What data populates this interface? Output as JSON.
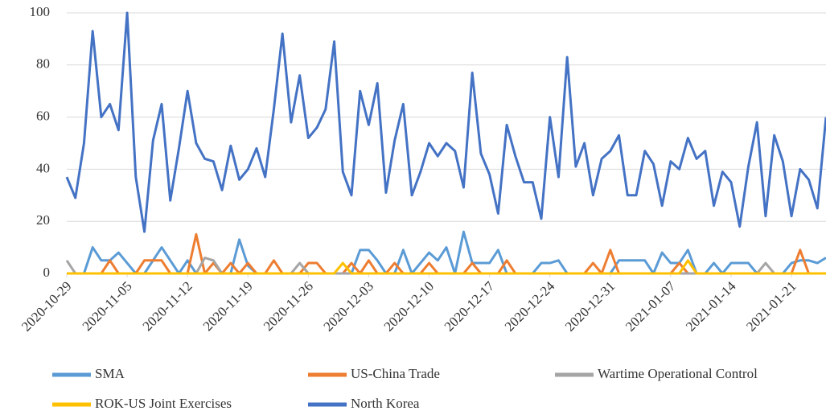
{
  "chart_data": {
    "type": "line",
    "categories": [
      "2020-10-29",
      null,
      null,
      null,
      null,
      null,
      null,
      "2020-11-05",
      null,
      null,
      null,
      null,
      null,
      null,
      "2020-11-12",
      null,
      null,
      null,
      null,
      null,
      null,
      "2020-11-19",
      null,
      null,
      null,
      null,
      null,
      null,
      "2020-11-26",
      null,
      null,
      null,
      null,
      null,
      null,
      "2020-12-03",
      null,
      null,
      null,
      null,
      null,
      null,
      "2020-12-10",
      null,
      null,
      null,
      null,
      null,
      null,
      "2020-12-17",
      null,
      null,
      null,
      null,
      null,
      null,
      "2020-12-24",
      null,
      null,
      null,
      null,
      null,
      null,
      "2020-12-31",
      null,
      null,
      null,
      null,
      null,
      null,
      "2021-01-07",
      null,
      null,
      null,
      null,
      null,
      null,
      "2021-01-14",
      null,
      null,
      null,
      null,
      null,
      null,
      "2021-01-21",
      null,
      null,
      null,
      null
    ],
    "series": [
      {
        "name": "SMA",
        "color": "#5b9bd5",
        "values": [
          0,
          0,
          0,
          10,
          5,
          5,
          8,
          4,
          0,
          0,
          5,
          10,
          5,
          0,
          5,
          0,
          0,
          0,
          0,
          0,
          13,
          3,
          0,
          0,
          0,
          0,
          0,
          0,
          0,
          0,
          0,
          0,
          0,
          0,
          9,
          9,
          5,
          0,
          0,
          9,
          0,
          4,
          8,
          5,
          10,
          0,
          16,
          4,
          4,
          4,
          9,
          0,
          0,
          0,
          0,
          4,
          4,
          5,
          0,
          0,
          0,
          0,
          0,
          0,
          5,
          5,
          5,
          5,
          0,
          8,
          4,
          4,
          9,
          0,
          0,
          4,
          0,
          4,
          4,
          4,
          0,
          0,
          0,
          0,
          4,
          5,
          5,
          4,
          6
        ]
      },
      {
        "name": "US-China Trade",
        "color": "#ed7d31",
        "values": [
          0,
          0,
          0,
          0,
          0,
          5,
          0,
          0,
          0,
          5,
          5,
          5,
          0,
          0,
          0,
          15,
          0,
          4,
          0,
          4,
          0,
          4,
          0,
          0,
          5,
          0,
          0,
          0,
          4,
          4,
          0,
          0,
          0,
          4,
          0,
          5,
          0,
          0,
          4,
          0,
          0,
          0,
          4,
          0,
          0,
          0,
          0,
          4,
          0,
          0,
          0,
          5,
          0,
          0,
          0,
          0,
          0,
          0,
          0,
          0,
          0,
          4,
          0,
          9,
          0,
          0,
          0,
          0,
          0,
          0,
          0,
          4,
          0,
          0,
          0,
          0,
          0,
          0,
          0,
          0,
          0,
          0,
          0,
          0,
          0,
          9,
          0,
          0,
          0
        ]
      },
      {
        "name": "Wartime Operational Control",
        "color": "#a5a5a5",
        "values": [
          5,
          0,
          0,
          0,
          0,
          0,
          0,
          0,
          0,
          0,
          0,
          0,
          0,
          0,
          0,
          0,
          6,
          5,
          0,
          0,
          0,
          0,
          0,
          0,
          0,
          0,
          0,
          4,
          0,
          0,
          0,
          0,
          0,
          0,
          0,
          0,
          0,
          0,
          0,
          0,
          0,
          0,
          0,
          0,
          0,
          0,
          0,
          0,
          0,
          0,
          0,
          0,
          0,
          0,
          0,
          0,
          0,
          0,
          0,
          0,
          0,
          0,
          0,
          0,
          0,
          0,
          0,
          0,
          0,
          0,
          0,
          0,
          0,
          0,
          0,
          0,
          0,
          0,
          0,
          0,
          0,
          4,
          0,
          0,
          0,
          0,
          0,
          0,
          0
        ]
      },
      {
        "name": "ROK-US Joint Exercises",
        "color": "#ffc000",
        "values": [
          0,
          0,
          0,
          0,
          0,
          0,
          0,
          0,
          0,
          0,
          0,
          0,
          0,
          0,
          0,
          0,
          0,
          0,
          0,
          0,
          0,
          0,
          0,
          0,
          0,
          0,
          0,
          0,
          0,
          0,
          0,
          0,
          4,
          0,
          0,
          0,
          0,
          0,
          0,
          0,
          0,
          0,
          0,
          0,
          0,
          0,
          0,
          0,
          0,
          0,
          0,
          0,
          0,
          0,
          0,
          0,
          0,
          0,
          0,
          0,
          0,
          0,
          0,
          0,
          0,
          0,
          0,
          0,
          0,
          0,
          0,
          0,
          5,
          0,
          0,
          0,
          0,
          0,
          0,
          0,
          0,
          0,
          0,
          0,
          0,
          0,
          0,
          0,
          0
        ]
      },
      {
        "name": "North Korea",
        "color": "#4472c4",
        "values": [
          37,
          29,
          50,
          93,
          60,
          65,
          55,
          100,
          37,
          16,
          51,
          65,
          28,
          48,
          70,
          50,
          44,
          43,
          32,
          49,
          36,
          40,
          48,
          37,
          63,
          92,
          58,
          76,
          52,
          56,
          63,
          89,
          39,
          30,
          70,
          57,
          73,
          31,
          51,
          65,
          30,
          39,
          50,
          45,
          50,
          47,
          33,
          77,
          46,
          38,
          23,
          57,
          45,
          35,
          35,
          21,
          60,
          37,
          83,
          41,
          50,
          30,
          44,
          47,
          53,
          30,
          30,
          47,
          42,
          26,
          43,
          40,
          52,
          44,
          47,
          26,
          39,
          35,
          18,
          41,
          58,
          22,
          53,
          43,
          22,
          40,
          36,
          25,
          60
        ]
      }
    ],
    "ylim": [
      0,
      100
    ],
    "yticks": [
      0,
      20,
      40,
      60,
      80,
      100
    ],
    "grid": true,
    "legend": "bottom"
  }
}
